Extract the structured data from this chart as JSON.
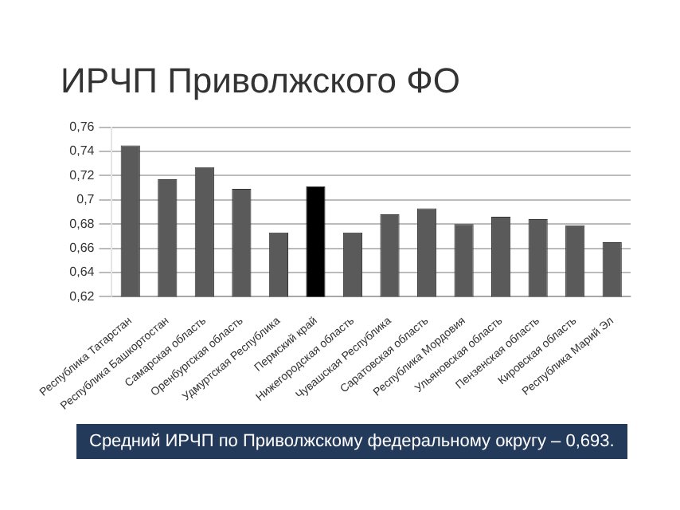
{
  "chart_data": {
    "type": "bar",
    "title": "ИРЧП Приволжского ФО",
    "categories": [
      "Республика Татарстан",
      "Республика Башкортостан",
      "Самарская область",
      "Оренбургская область",
      "Удмуртская Республика",
      "Пермский край",
      "Нижегородская область",
      "Чувашская Республика",
      "Саратовская область",
      "Республика Мордовия",
      "Ульяновская область",
      "Пензенская область",
      "Кировская область",
      "Республика Марий Эл"
    ],
    "values": [
      0.745,
      0.717,
      0.727,
      0.709,
      0.673,
      0.711,
      0.673,
      0.688,
      0.693,
      0.68,
      0.686,
      0.684,
      0.679,
      0.665
    ],
    "colors": [
      "#5a5a5a",
      "#5a5a5a",
      "#5a5a5a",
      "#5a5a5a",
      "#5a5a5a",
      "#000000",
      "#5a5a5a",
      "#5a5a5a",
      "#5a5a5a",
      "#5a5a5a",
      "#5a5a5a",
      "#5a5a5a",
      "#5a5a5a",
      "#5a5a5a"
    ],
    "ylim": [
      0.62,
      0.76
    ],
    "yticks": [
      {
        "value": 0.62,
        "label": "0,62"
      },
      {
        "value": 0.64,
        "label": "0,64"
      },
      {
        "value": 0.66,
        "label": "0,66"
      },
      {
        "value": 0.68,
        "label": "0,68"
      },
      {
        "value": 0.7,
        "label": "0,7"
      },
      {
        "value": 0.72,
        "label": "0,72"
      },
      {
        "value": 0.74,
        "label": "0,74"
      },
      {
        "value": 0.76,
        "label": "0,76"
      }
    ],
    "grid": "y",
    "legend": false,
    "annotations": [
      "Средний ИРЧП по Приволжскому федеральному округу – 0,693."
    ]
  }
}
